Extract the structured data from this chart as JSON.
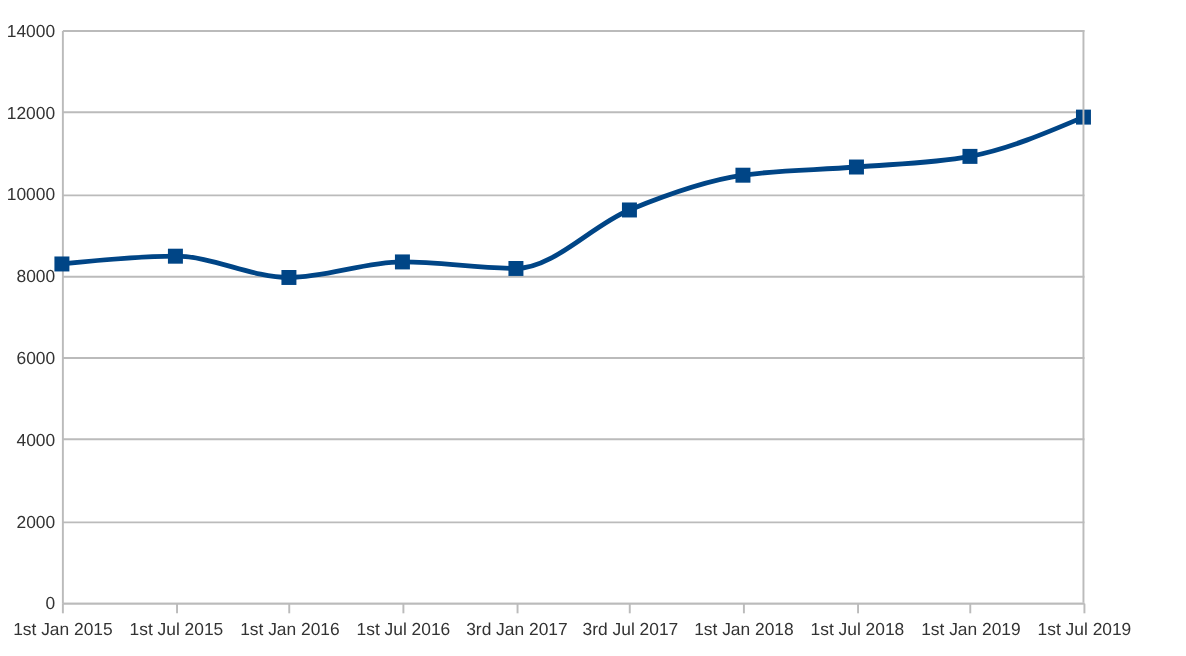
{
  "chart_data": {
    "type": "line",
    "categories": [
      "1st Jan 2015",
      "1st Jul 2015",
      "1st Jan 2016",
      "1st Jul 2016",
      "3rd Jan 2017",
      "3rd Jul 2017",
      "1st Jan 2018",
      "1st Jul 2018",
      "1st Jan 2019",
      "1st Jul 2019"
    ],
    "series": [
      {
        "color": "#004586",
        "values": [
          8280,
          8470,
          7950,
          8330,
          8170,
          9600,
          10450,
          10650,
          10910,
          11870
        ]
      }
    ],
    "ylim": [
      0,
      14000
    ],
    "yticks": [
      0,
      2000,
      4000,
      6000,
      8000,
      10000,
      12000,
      14000
    ],
    "grid": "y",
    "marker": "square",
    "line_style": "solid"
  }
}
